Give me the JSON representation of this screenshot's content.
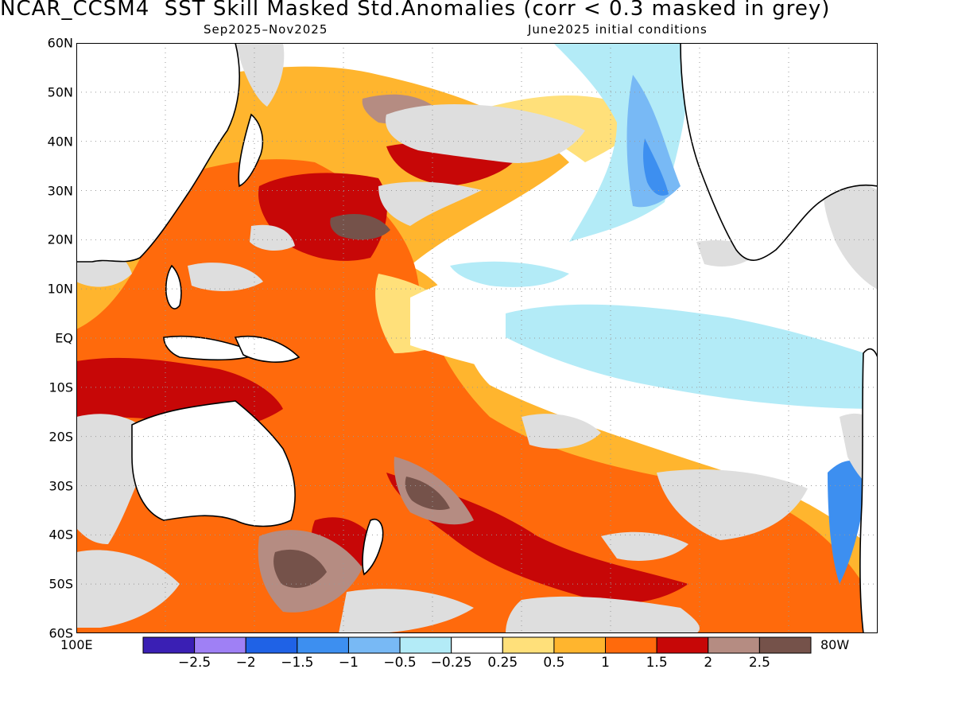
{
  "header": {
    "title": "NCAR_CCSM4  SST Skill Masked Std.Anomalies (corr < 0.3 masked in grey)",
    "period": "Sep2025–Nov2025",
    "init": "June2025 initial conditions"
  },
  "axes": {
    "lat_labels": [
      "60N",
      "50N",
      "40N",
      "30N",
      "20N",
      "10N",
      "EQ",
      "10S",
      "20S",
      "30S",
      "40S",
      "50S",
      "60S"
    ],
    "lon_left": "100E",
    "lon_right": "80W"
  },
  "colorbar": {
    "colors": [
      "#3a1fb4",
      "#9f80f5",
      "#1f62e6",
      "#3d8ff0",
      "#78b9f5",
      "#b3ebf7",
      "#ffffff",
      "#ffe07a",
      "#ffb52e",
      "#ff6a0c",
      "#c70707",
      "#b58c82",
      "#75524a"
    ],
    "labels": [
      "−2.5",
      "−2",
      "−1.5",
      "−1",
      "−0.5",
      "−0.25",
      "0.25",
      "0.5",
      "1",
      "1.5",
      "2",
      "2.5"
    ]
  },
  "mask_color": "#dedede",
  "land_outline_color": "#000000"
}
